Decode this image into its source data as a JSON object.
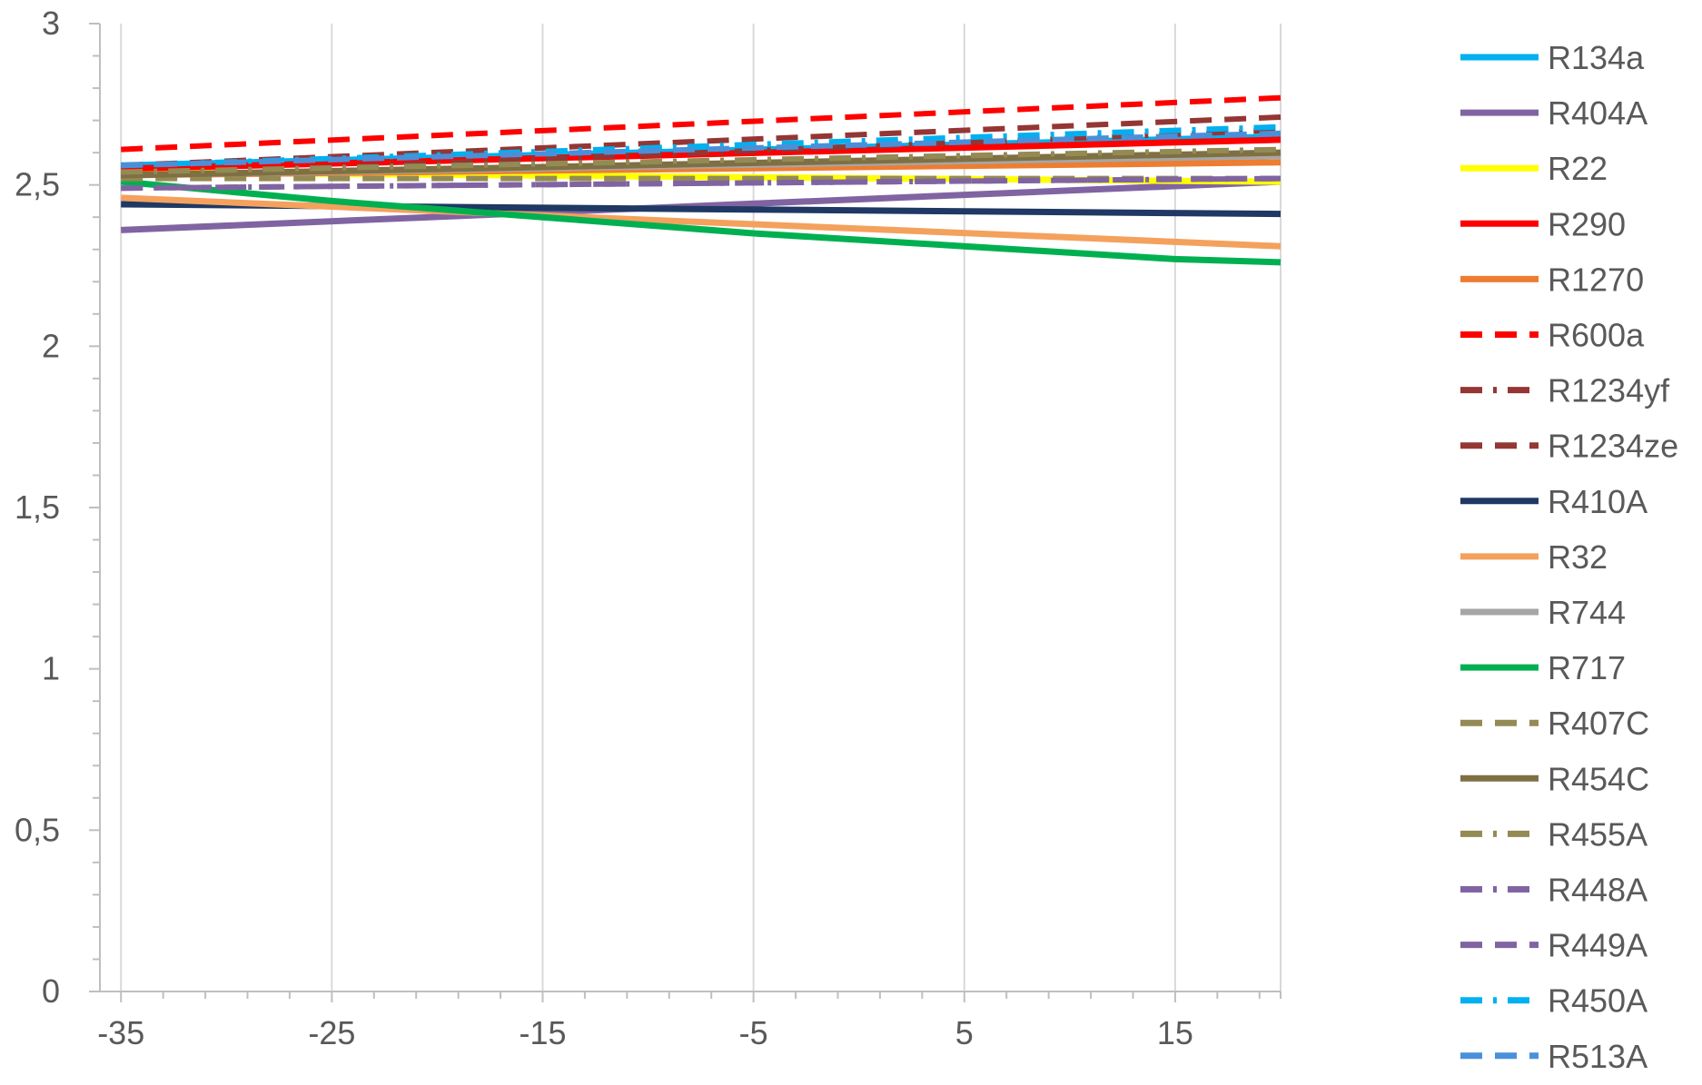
{
  "chart_data": {
    "type": "line",
    "title": "",
    "xlabel": "",
    "ylabel": "",
    "xlim": [
      -36,
      20
    ],
    "ylim": [
      0,
      3
    ],
    "grid": "vertical",
    "legend_position": "right",
    "x_ticks": [
      -35,
      -25,
      -15,
      -5,
      5,
      15
    ],
    "x_tick_labels": [
      "-35",
      "-25",
      "-15",
      "-5",
      "5",
      "15"
    ],
    "y_ticks": [
      0,
      0.5,
      1,
      1.5,
      2,
      2.5,
      3
    ],
    "y_tick_labels": [
      "0",
      "0,5",
      "1",
      "1,5",
      "2",
      "2,5",
      "3"
    ],
    "series": [
      {
        "name": "R134a",
        "color": "#00B0F0",
        "dash": "solid",
        "x": [
          -35,
          20
        ],
        "y": [
          2.56,
          2.65
        ]
      },
      {
        "name": "R404A",
        "color": "#8064A2",
        "dash": "solid",
        "x": [
          -35,
          20
        ],
        "y": [
          2.36,
          2.51
        ]
      },
      {
        "name": "R22",
        "color": "#FFFF00",
        "dash": "solid",
        "x": [
          -35,
          20
        ],
        "y": [
          2.54,
          2.51
        ]
      },
      {
        "name": "R290",
        "color": "#FF0000",
        "dash": "solid",
        "x": [
          -35,
          20
        ],
        "y": [
          2.55,
          2.64
        ]
      },
      {
        "name": "R1270",
        "color": "#ED7D31",
        "dash": "solid",
        "x": [
          -35,
          20
        ],
        "y": [
          2.53,
          2.57
        ]
      },
      {
        "name": "R600a",
        "color": "#FF0000",
        "dash": "dash",
        "x": [
          -35,
          20
        ],
        "y": [
          2.61,
          2.77
        ]
      },
      {
        "name": "R1234yf",
        "color": "#943634",
        "dash": "dashdot",
        "x": [
          -35,
          20
        ],
        "y": [
          2.53,
          2.67
        ]
      },
      {
        "name": "R1234ze",
        "color": "#943634",
        "dash": "dash",
        "x": [
          -35,
          20
        ],
        "y": [
          2.56,
          2.71
        ]
      },
      {
        "name": "R410A",
        "color": "#1F3864",
        "dash": "solid",
        "x": [
          -35,
          20
        ],
        "y": [
          2.44,
          2.41
        ]
      },
      {
        "name": "R32",
        "color": "#F4A15D",
        "dash": "solid",
        "x": [
          -35,
          20
        ],
        "y": [
          2.46,
          2.31
        ]
      },
      {
        "name": "R744",
        "color": "#A6A6A6",
        "dash": "solid",
        "x": [
          -35,
          20
        ],
        "y": [
          2.53,
          2.59
        ]
      },
      {
        "name": "R717",
        "color": "#00B050",
        "dash": "solid",
        "x": [
          -35,
          -25,
          -15,
          -5,
          5,
          15,
          20
        ],
        "y": [
          2.51,
          2.45,
          2.4,
          2.35,
          2.31,
          2.27,
          2.26
        ]
      },
      {
        "name": "R407C",
        "color": "#948A54",
        "dash": "dash",
        "x": [
          -35,
          20
        ],
        "y": [
          2.52,
          2.52
        ]
      },
      {
        "name": "R454C",
        "color": "#7F7043",
        "dash": "solid",
        "x": [
          -35,
          20
        ],
        "y": [
          2.53,
          2.6
        ]
      },
      {
        "name": "R455A",
        "color": "#948A54",
        "dash": "dashdot",
        "x": [
          -35,
          20
        ],
        "y": [
          2.54,
          2.61
        ]
      },
      {
        "name": "R448A",
        "color": "#8064A2",
        "dash": "dashdot",
        "x": [
          -35,
          20
        ],
        "y": [
          2.49,
          2.52
        ]
      },
      {
        "name": "R449A",
        "color": "#8064A2",
        "dash": "dash",
        "x": [
          -35,
          20
        ],
        "y": [
          2.49,
          2.52
        ]
      },
      {
        "name": "R450A",
        "color": "#00B0F0",
        "dash": "dashdot",
        "x": [
          -35,
          20
        ],
        "y": [
          2.56,
          2.68
        ]
      },
      {
        "name": "R513A",
        "color": "#4A90D9",
        "dash": "dash",
        "x": [
          -35,
          20
        ],
        "y": [
          2.56,
          2.66
        ]
      }
    ]
  }
}
